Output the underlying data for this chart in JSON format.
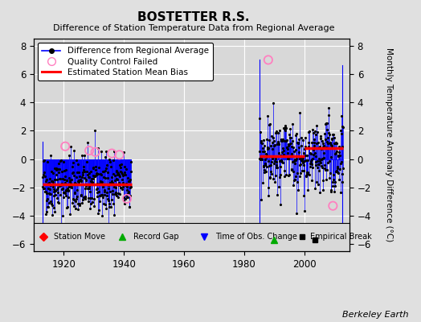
{
  "title": "BOSTETTER R.S.",
  "subtitle": "Difference of Station Temperature Data from Regional Average",
  "ylabel": "Monthly Temperature Anomaly Difference (°C)",
  "berkeley_label": "Berkeley Earth",
  "ylim": [
    -6.5,
    8.5
  ],
  "yticks": [
    -6,
    -4,
    -2,
    0,
    2,
    4,
    6,
    8
  ],
  "xlim": [
    1910,
    2015
  ],
  "xticks": [
    1920,
    1940,
    1960,
    1980,
    2000
  ],
  "fig_bg": "#e0e0e0",
  "plot_bg": "#d8d8d8",
  "segment1_start": 1913.0,
  "segment1_end": 1942.5,
  "segment1_bias": -1.8,
  "segment2_start": 1985.0,
  "segment2_end": 2013.0,
  "segment2_bias": 0.2,
  "bias2b_start": 2000.0,
  "bias2b_end": 2013.0,
  "bias2b_val": 0.8,
  "spike1_x": 1913.0,
  "spike1_y0": -6.0,
  "spike1_y1": 1.2,
  "spike2_x": 1985.0,
  "spike2_y0": -6.0,
  "spike2_y1": 7.0,
  "spike3_x": 2012.5,
  "spike3_y0": -5.5,
  "spike3_y1": 6.6,
  "qc_x": [
    1920.5,
    1928.5,
    1930.5,
    1936.0,
    1938.5,
    1941.0,
    1988.0,
    2009.5
  ],
  "qc_y": [
    0.9,
    0.6,
    0.5,
    0.4,
    0.3,
    -2.8,
    7.0,
    -3.3
  ],
  "record_gap_x": 1990.0,
  "record_gap_y": -5.7,
  "empirical_break_x": 2003.5,
  "empirical_break_y": -5.7,
  "seed1": 42,
  "seed2": 99
}
